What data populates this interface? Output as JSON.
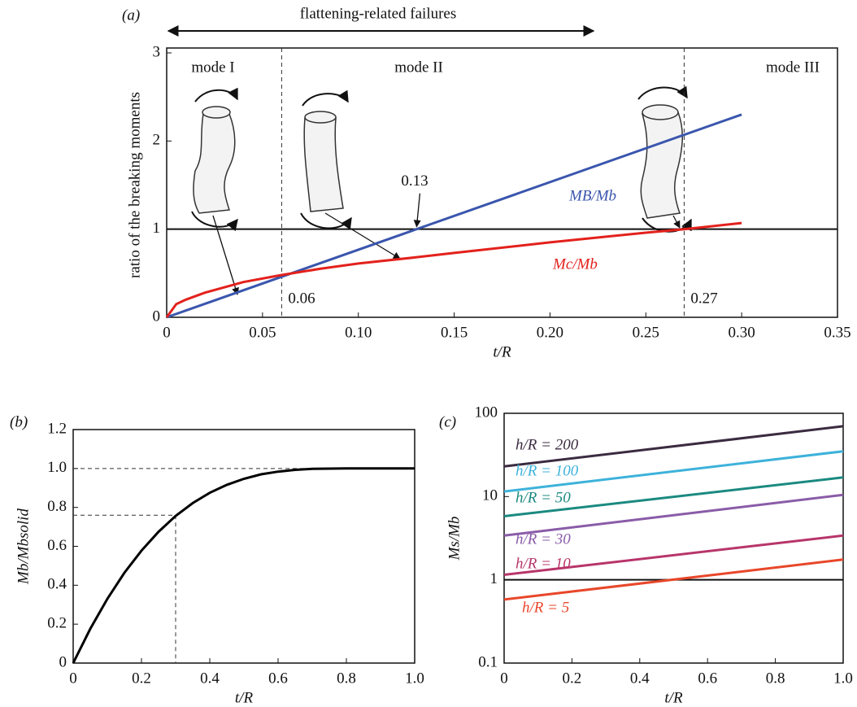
{
  "chart_data": [
    {
      "type": "line",
      "panel": "(a)",
      "xlabel": "t/R",
      "ylabel": "ratio of the breaking moments",
      "xlim": [
        0,
        0.35
      ],
      "ylim": [
        0,
        3
      ],
      "xticks": [
        0,
        0.05,
        {
          "value": 0.1,
          "label": "0.10"
        },
        0.15,
        {
          "value": 0.2,
          "label": "0.20"
        },
        0.25,
        {
          "value": 0.3,
          "label": "0.30"
        },
        0.35
      ],
      "yticks": [
        0,
        1,
        2,
        3
      ],
      "series": [
        {
          "name": "MB/Mb",
          "color": "#3a56ad",
          "x": [
            0,
            0.3
          ],
          "values": [
            0,
            2.3
          ]
        },
        {
          "name": "Mc/Mb",
          "color": "#e3211c",
          "x": [
            0,
            0.005,
            0.01,
            0.02,
            0.04,
            0.06,
            0.08,
            0.1,
            0.13,
            0.15,
            0.2,
            0.25,
            0.27,
            0.3
          ],
          "values": [
            0,
            0.15,
            0.2,
            0.28,
            0.4,
            0.48,
            0.55,
            0.61,
            0.68,
            0.73,
            0.85,
            0.96,
            1.0,
            1.07
          ]
        }
      ],
      "hline": 1,
      "vlines": [
        0.06,
        0.27
      ],
      "crossing": 0.13,
      "annotations": [
        "flattening-related failures",
        "mode I",
        "mode II",
        "mode III"
      ]
    },
    {
      "type": "line",
      "panel": "(b)",
      "xlabel": "t/R",
      "ylabel": "Mb/Mbsolid",
      "xlim": [
        0,
        1
      ],
      "ylim": [
        0,
        1.2
      ],
      "xticks": [
        0,
        0.2,
        0.4,
        0.6,
        0.8,
        {
          "value": 1,
          "label": "1.0"
        }
      ],
      "yticks": [
        0,
        0.2,
        0.4,
        0.6,
        0.8,
        {
          "value": 1,
          "label": "1.0"
        },
        1.2
      ],
      "series": [
        {
          "color": "#000000",
          "x": [
            0,
            0.05,
            0.1,
            0.15,
            0.2,
            0.25,
            0.3,
            0.35,
            0.4,
            0.45,
            0.5,
            0.55,
            0.6,
            0.65,
            0.7,
            0.8,
            0.9,
            1
          ],
          "values": [
            0,
            0.176,
            0.33,
            0.464,
            0.578,
            0.675,
            0.756,
            0.822,
            0.875,
            0.916,
            0.947,
            0.97,
            0.984,
            0.993,
            0.998,
            1,
            1,
            1
          ]
        }
      ],
      "guide_point": [
        0.3,
        0.76
      ],
      "guide_level": 1
    },
    {
      "type": "line",
      "panel": "(c)",
      "xlabel": "t/R",
      "ylabel": "Ms/Mb",
      "log_y": true,
      "xlim": [
        0,
        1
      ],
      "ylim": [
        0.1,
        100
      ],
      "xticks": [
        0,
        0.2,
        0.4,
        0.6,
        0.8,
        {
          "value": 1,
          "label": "1.0"
        }
      ],
      "yticks": [
        0.1,
        1,
        10,
        100
      ],
      "series": [
        {
          "name": "h/R = 200",
          "color": "#3b2b40",
          "x": [
            0,
            1
          ],
          "values": [
            23,
            70
          ]
        },
        {
          "name": "h/R = 100",
          "color": "#3db2da",
          "x": [
            0,
            1
          ],
          "values": [
            11.5,
            35
          ]
        },
        {
          "name": "h/R = 50",
          "color": "#1b8a80",
          "x": [
            0,
            1
          ],
          "values": [
            5.8,
            17
          ]
        },
        {
          "name": "h/R = 30",
          "color": "#8a5ca8",
          "x": [
            0,
            1
          ],
          "values": [
            3.4,
            10.5
          ]
        },
        {
          "name": "h/R = 10",
          "color": "#b8356a",
          "x": [
            0,
            1
          ],
          "values": [
            1.15,
            3.4
          ]
        },
        {
          "name": "h/R = 5",
          "color": "#e8472a",
          "x": [
            0,
            1
          ],
          "values": [
            0.58,
            1.75
          ]
        }
      ],
      "hline": 1
    }
  ]
}
